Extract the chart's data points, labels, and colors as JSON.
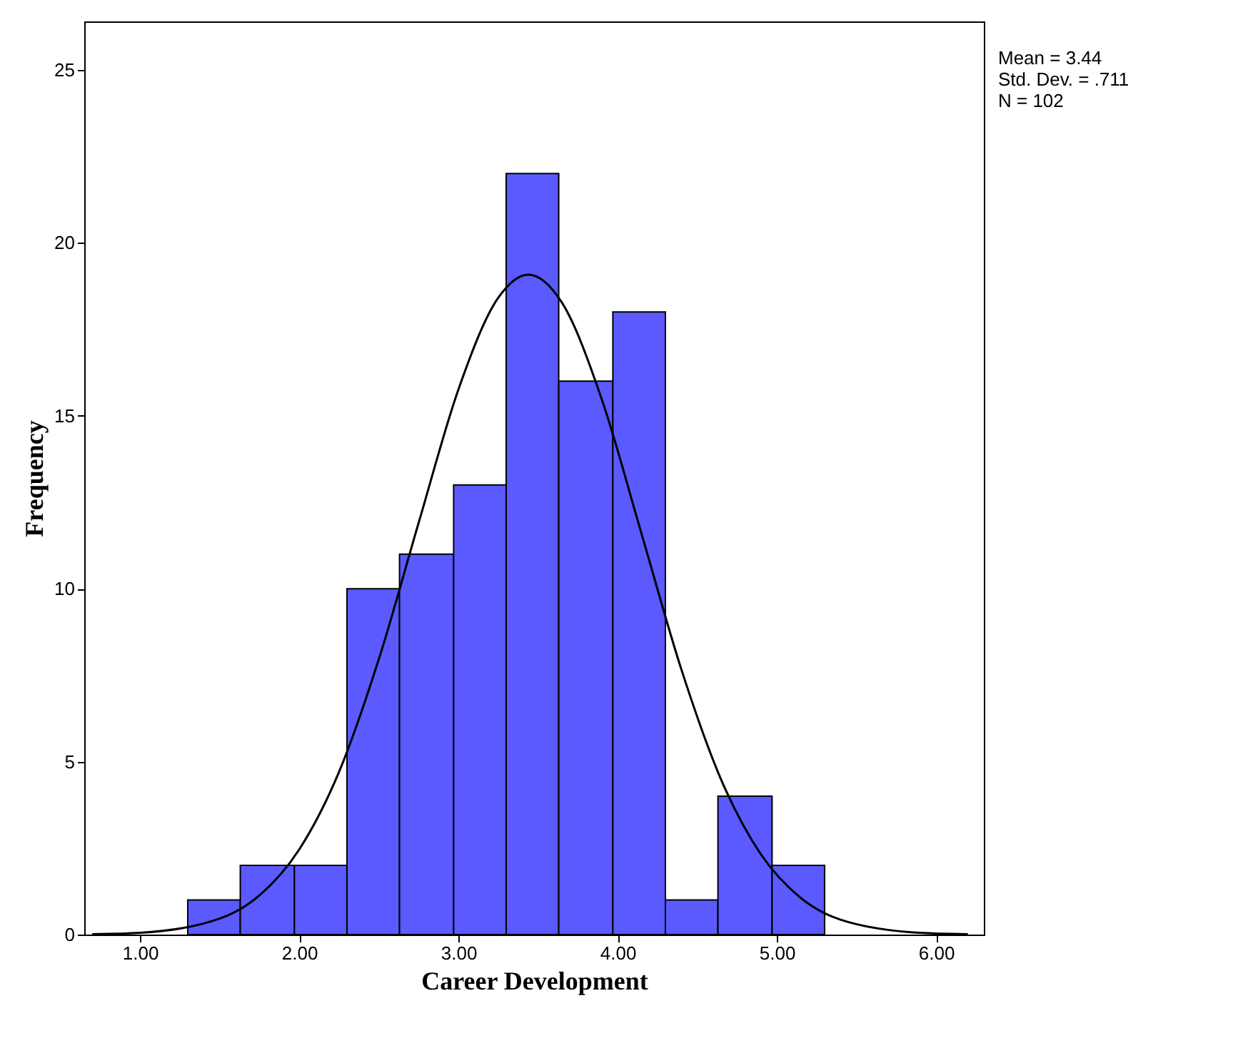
{
  "chart_data": {
    "type": "histogram",
    "xlabel": "Career Development",
    "ylabel": "Frequency",
    "bins": [
      1.3,
      1.63,
      1.97,
      2.3,
      2.63,
      2.97,
      3.3,
      3.63,
      3.97,
      4.3,
      4.63,
      4.97,
      5.3
    ],
    "values": [
      1,
      2,
      2,
      10,
      11,
      13,
      22,
      16,
      18,
      1,
      4,
      2
    ],
    "color": "#5a5aff",
    "series": [
      {
        "type": "line",
        "color": "#000000",
        "x": [
          0.7,
          1.0,
          1.5,
          1.75,
          2.0,
          2.25,
          2.5,
          2.75,
          3.0,
          3.25,
          3.44,
          3.65,
          3.9,
          4.15,
          4.4,
          4.65,
          4.9,
          5.15,
          5.4,
          5.9,
          6.2
        ],
        "values": [
          0.01,
          0.05,
          0.46,
          1.13,
          2.46,
          4.7,
          7.96,
          11.9,
          15.76,
          18.41,
          19.08,
          18.27,
          15.48,
          11.59,
          7.67,
          4.48,
          2.32,
          1.06,
          0.43,
          0.05,
          0.01
        ]
      }
    ],
    "xlim": [
      0.65,
      6.3
    ],
    "xticks": [
      {
        "value": 1,
        "label": "1.00"
      },
      {
        "value": 2,
        "label": "2.00"
      },
      {
        "value": 3,
        "label": "3.00"
      },
      {
        "value": 4,
        "label": "4.00"
      },
      {
        "value": 5,
        "label": "5.00"
      },
      {
        "value": 6,
        "label": "6.00"
      }
    ],
    "ylim": [
      0,
      26.4
    ],
    "yticks": [
      0,
      5,
      10,
      15,
      20,
      25
    ],
    "grid": false,
    "annotations": [
      "Mean = 3.44",
      "Std. Dev. = .711",
      "N = 102"
    ]
  }
}
